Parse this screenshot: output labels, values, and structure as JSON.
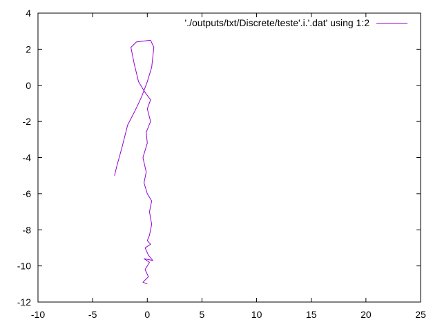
{
  "chart_data": {
    "type": "line",
    "title": "",
    "xlabel": "",
    "ylabel": "",
    "xlim": [
      -10,
      25
    ],
    "ylim": [
      -12,
      4
    ],
    "xticks": [
      -10,
      -5,
      0,
      5,
      10,
      15,
      20,
      25
    ],
    "yticks": [
      -12,
      -10,
      -8,
      -6,
      -4,
      -2,
      0,
      2,
      4
    ],
    "grid": false,
    "legend_position": "top-right",
    "series": [
      {
        "name": "'./outputs/txt/Discrete/teste'.i.'.dat' using 1:2",
        "color": "#9400d3",
        "points": [
          [
            0.0,
            -11.0
          ],
          [
            -0.4,
            -10.9
          ],
          [
            0.1,
            -10.6
          ],
          [
            -0.2,
            -10.2
          ],
          [
            0.2,
            -9.8
          ],
          [
            -0.3,
            -9.6
          ],
          [
            0.5,
            -9.7
          ],
          [
            0.1,
            -9.4
          ],
          [
            -0.2,
            -9.0
          ],
          [
            0.3,
            -8.8
          ],
          [
            0.0,
            -8.6
          ],
          [
            0.2,
            -8.3
          ],
          [
            0.4,
            -7.7
          ],
          [
            0.2,
            -7.0
          ],
          [
            0.4,
            -6.4
          ],
          [
            0.0,
            -6.0
          ],
          [
            -0.3,
            -5.4
          ],
          [
            -0.1,
            -4.8
          ],
          [
            -0.4,
            -4.0
          ],
          [
            0.0,
            -3.2
          ],
          [
            -0.1,
            -2.6
          ],
          [
            0.3,
            -2.0
          ],
          [
            0.0,
            -1.3
          ],
          [
            0.3,
            -0.8
          ],
          [
            -0.2,
            -0.4
          ],
          [
            -0.8,
            0.2
          ],
          [
            -1.2,
            1.2
          ],
          [
            -1.5,
            2.1
          ],
          [
            -1.0,
            2.4
          ],
          [
            0.3,
            2.5
          ],
          [
            0.6,
            2.1
          ],
          [
            0.4,
            1.0
          ],
          [
            0.0,
            0.2
          ],
          [
            -0.5,
            -0.6
          ],
          [
            -0.8,
            -1.0
          ],
          [
            -1.2,
            -1.5
          ],
          [
            -1.8,
            -2.2
          ],
          [
            -2.3,
            -3.4
          ],
          [
            -2.8,
            -4.5
          ],
          [
            -3.0,
            -5.0
          ]
        ]
      }
    ]
  }
}
